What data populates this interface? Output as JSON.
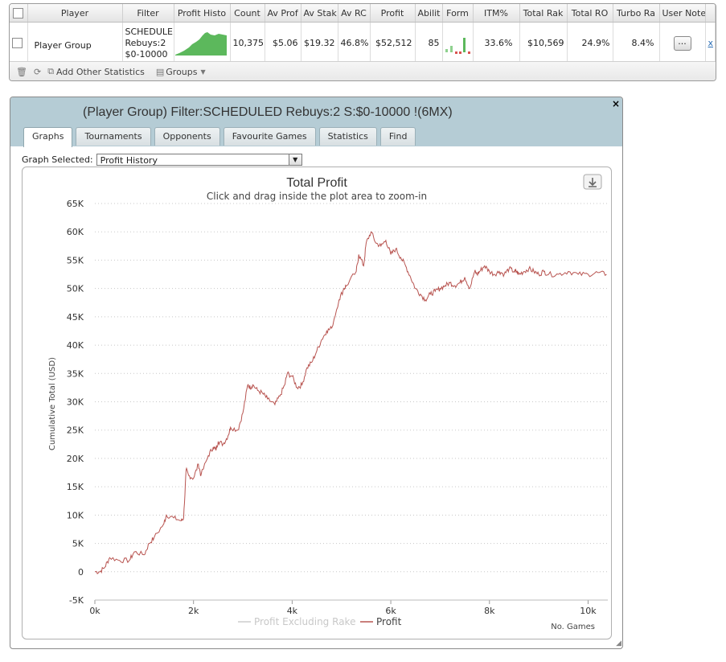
{
  "stats_table": {
    "headers": [
      "Player",
      "Filter",
      "Profit Histo",
      "Count",
      "Av Prof",
      "Av Stak",
      "Av RC",
      "Profit",
      "Abilit",
      "Form",
      "ITM%",
      "Total Rak",
      "Total RO",
      "Turbo Ra",
      "User Note"
    ],
    "row": {
      "player": "Player Group",
      "filter_lines": [
        "SCHEDULE",
        "Rebuys:2",
        "$0-10000"
      ],
      "count": "10,375",
      "av_profit": "$5.06",
      "av_stake": "$19.32",
      "av_roi": "46.8%",
      "profit": "$52,512",
      "ability": "85",
      "itm": "33.6%",
      "total_rake": "$10,569",
      "total_roi": "24.9%",
      "turbo_ratio": "8.4%",
      "note_button": "...",
      "extra_link": "x"
    },
    "footer": {
      "add_stats": "Add Other Statistics",
      "groups": "Groups"
    }
  },
  "graph_window": {
    "title": "(Player Group) Filter:SCHEDULED Rebuys:2 S:$0-10000 !(6MX)",
    "close": "×",
    "tabs": [
      "Graphs",
      "Tournaments",
      "Opponents",
      "Favourite Games",
      "Statistics",
      "Find"
    ],
    "graph_selected_label": "Graph Selected:",
    "graph_selected_value": "Profit History"
  },
  "chart_data": {
    "type": "line",
    "title": "Total Profit",
    "subtitle": "Click and drag inside the plot area to zoom-in",
    "xlabel": "No. Games",
    "ylabel": "Cumulative Total (USD)",
    "xlim": [
      0,
      10375
    ],
    "ylim": [
      -5000,
      65000
    ],
    "x_ticks": [
      "0k",
      "2k",
      "4k",
      "6k",
      "8k",
      "10k"
    ],
    "y_ticks": [
      "-5K",
      "0",
      "5K",
      "10K",
      "15K",
      "20K",
      "25K",
      "30K",
      "35K",
      "40K",
      "45K",
      "50K",
      "55K",
      "60K",
      "65K"
    ],
    "grid": true,
    "legend": "bottom-center",
    "series": [
      {
        "name": "Profit Excluding Rake",
        "color": "#cccccc",
        "x": [],
        "y": []
      },
      {
        "name": "Profit",
        "color": "#b85450",
        "x": [
          0,
          100,
          200,
          300,
          500,
          700,
          800,
          1000,
          1100,
          1200,
          1400,
          1450,
          1600,
          1750,
          1800,
          1850,
          1900,
          2000,
          2100,
          2150,
          2300,
          2400,
          2450,
          2500,
          2600,
          2700,
          2750,
          2900,
          3000,
          3100,
          3150,
          3200,
          3300,
          3400,
          3500,
          3650,
          3750,
          3850,
          3900,
          4000,
          4100,
          4200,
          4300,
          4400,
          4500,
          4600,
          4700,
          4800,
          4950,
          5050,
          5100,
          5300,
          5350,
          5450,
          5500,
          5600,
          5700,
          5800,
          5900,
          6000,
          6100,
          6200,
          6300,
          6400,
          6500,
          6600,
          6700,
          6800,
          6900,
          7000,
          7100,
          7200,
          7300,
          7400,
          7500,
          7600,
          7700,
          7750,
          7800,
          7900,
          8000,
          8100,
          8200,
          8300,
          8400,
          8500,
          8550,
          8600,
          8700,
          8800,
          8900,
          9000,
          9100,
          9200,
          9400,
          9600,
          9800,
          10000,
          10200,
          10375
        ],
        "y": [
          0,
          0,
          800,
          2500,
          2000,
          2000,
          3500,
          3000,
          5000,
          6000,
          8500,
          10000,
          9500,
          9000,
          9500,
          18000,
          17000,
          16500,
          19000,
          17000,
          20500,
          22000,
          21500,
          23000,
          22500,
          24000,
          25500,
          25000,
          28000,
          33000,
          32500,
          33000,
          32000,
          31500,
          30500,
          29500,
          31000,
          33000,
          35000,
          34500,
          32500,
          33000,
          36000,
          37000,
          39000,
          41000,
          42500,
          43000,
          48000,
          50000,
          50500,
          53000,
          56000,
          54000,
          58000,
          60000,
          58000,
          57500,
          58500,
          56000,
          57000,
          55500,
          54000,
          52000,
          50000,
          49000,
          48000,
          49000,
          49500,
          50000,
          50500,
          51000,
          50500,
          51000,
          52000,
          50000,
          53000,
          52500,
          53000,
          54000,
          53000,
          52500,
          53000,
          52500,
          53500,
          53000,
          53000,
          52500,
          53000,
          53500,
          53000,
          52500,
          53000,
          52500,
          52500,
          53000,
          52500,
          52500,
          52800,
          52512
        ]
      }
    ]
  }
}
